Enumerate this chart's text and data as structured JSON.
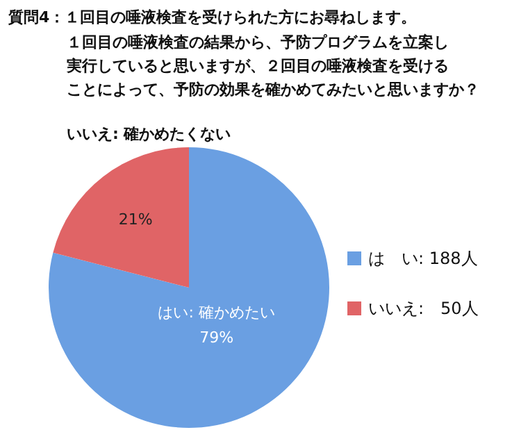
{
  "chart_data": {
    "type": "pie",
    "title": "質問4：１回目の唾液検査を受けられた方にお尋ねします。",
    "subtitle": [
      "１回目の唾液検査の結果から、予防プログラムを立案し",
      "実行していると思いますが、２回目の唾液検査を受ける",
      "ことによって、予防の効果を確かめてみたいと思いますか？"
    ],
    "categories": [
      "は　い: 188人",
      "いいえ:　50人"
    ],
    "values": [
      79,
      21
    ],
    "colors": [
      "#6a9fe2",
      "#e06466"
    ],
    "value_labels": [
      "79%",
      "21%"
    ],
    "annotations": [
      "はい: 確かめたい",
      "いいえ: 確かめたくない"
    ],
    "legend": "right"
  }
}
